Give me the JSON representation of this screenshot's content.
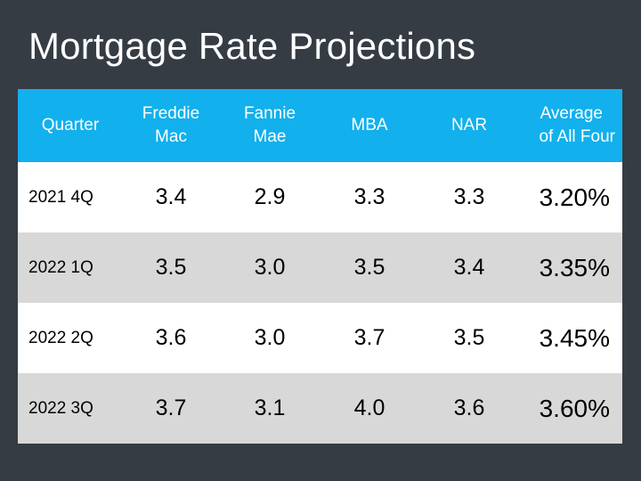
{
  "title": "Mortgage Rate Projections",
  "table": {
    "headers": [
      {
        "line1": "Quarter",
        "line2": ""
      },
      {
        "line1": "Freddie",
        "line2": "Mac"
      },
      {
        "line1": "Fannie",
        "line2": "Mae"
      },
      {
        "line1": "MBA",
        "line2": ""
      },
      {
        "line1": "NAR",
        "line2": ""
      },
      {
        "line1": "Average",
        "line2": "of All Four"
      }
    ],
    "rows": [
      {
        "quarter": "2021 4Q",
        "freddie_mac": "3.4",
        "fannie_mae": "2.9",
        "mba": "3.3",
        "nar": "3.3",
        "average": "3.20%"
      },
      {
        "quarter": "2022 1Q",
        "freddie_mac": "3.5",
        "fannie_mae": "3.0",
        "mba": "3.5",
        "nar": "3.4",
        "average": "3.35%"
      },
      {
        "quarter": "2022 2Q",
        "freddie_mac": "3.6",
        "fannie_mae": "3.0",
        "mba": "3.7",
        "nar": "3.5",
        "average": "3.45%"
      },
      {
        "quarter": "2022 3Q",
        "freddie_mac": "3.7",
        "fannie_mae": "3.1",
        "mba": "4.0",
        "nar": "3.6",
        "average": "3.60%"
      }
    ]
  },
  "colors": {
    "background": "#353c44",
    "header": "#12b0ec",
    "row_light": "#ffffff",
    "row_gray": "#d8d8d8"
  }
}
